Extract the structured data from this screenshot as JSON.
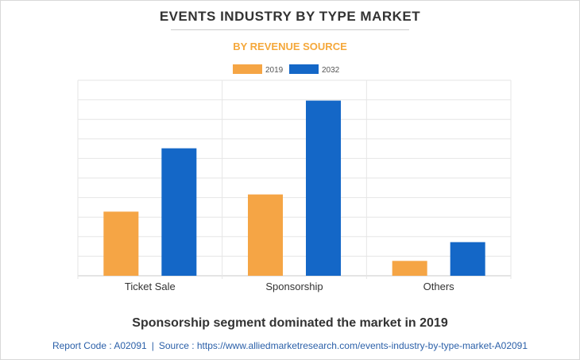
{
  "title": "EVENTS INDUSTRY BY TYPE MARKET",
  "subtitle": "BY REVENUE SOURCE",
  "caption": "Sponsorship segment dominated the market in 2019",
  "footer": {
    "report_code": "Report Code : A02091",
    "separator": "|",
    "source": "Source : https://www.alliedmarketresearch.com/events-industry-by-type-market-A02091"
  },
  "chart_data": {
    "type": "bar",
    "categories": [
      "Ticket Sale",
      "Sponsorship",
      "Others"
    ],
    "series": [
      {
        "name": "2019",
        "color": "#f5a545",
        "values": [
          82,
          104,
          19
        ]
      },
      {
        "name": "2032",
        "color": "#1467c7",
        "values": [
          163,
          224,
          43
        ]
      }
    ],
    "ylim": [
      0,
      250
    ],
    "grid": true,
    "legend": "top-center",
    "y_tick_labels_shown": false
  }
}
